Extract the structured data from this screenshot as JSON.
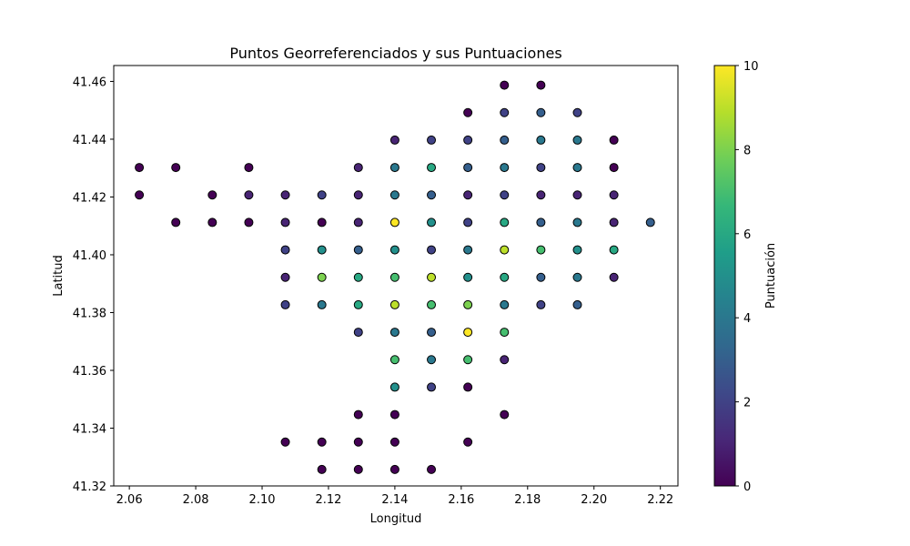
{
  "chart_data": {
    "type": "scatter",
    "title": "Puntos Georreferenciados y sus Puntuaciones",
    "xlabel": "Longitud",
    "ylabel": "Latitud",
    "xlim": [
      2.0553,
      2.2253
    ],
    "ylim": [
      41.32,
      41.4655
    ],
    "xticks": [
      2.06,
      2.08,
      2.1,
      2.12,
      2.14,
      2.16,
      2.18,
      2.2,
      2.22
    ],
    "xtick_labels": [
      "2.06",
      "2.08",
      "2.10",
      "2.12",
      "2.14",
      "2.16",
      "2.18",
      "2.20",
      "2.22"
    ],
    "yticks": [
      41.32,
      41.34,
      41.36,
      41.38,
      41.4,
      41.42,
      41.44,
      41.46
    ],
    "ytick_labels": [
      "41.32",
      "41.34",
      "41.36",
      "41.38",
      "41.40",
      "41.42",
      "41.44",
      "41.46"
    ],
    "colorbar": {
      "label": "Puntuación",
      "range": [
        0,
        10
      ],
      "ticks": [
        0,
        2,
        4,
        6,
        8,
        10
      ],
      "tick_labels": [
        "0",
        "2",
        "4",
        "6",
        "8",
        "10"
      ],
      "colormap": "viridis",
      "stops": [
        "#440154",
        "#482878",
        "#3e4989",
        "#31688e",
        "#26828e",
        "#1f9e89",
        "#35b779",
        "#6ece58",
        "#b5de2b",
        "#fde725"
      ]
    },
    "point_edge_color": "#000000",
    "points": [
      {
        "x": 2.173,
        "y": 41.4587,
        "v": 0
      },
      {
        "x": 2.184,
        "y": 41.4587,
        "v": 0
      },
      {
        "x": 2.162,
        "y": 41.4492,
        "v": 0
      },
      {
        "x": 2.173,
        "y": 41.4492,
        "v": 2
      },
      {
        "x": 2.184,
        "y": 41.4492,
        "v": 3
      },
      {
        "x": 2.195,
        "y": 41.4492,
        "v": 2
      },
      {
        "x": 2.14,
        "y": 41.4397,
        "v": 1
      },
      {
        "x": 2.151,
        "y": 41.4397,
        "v": 2
      },
      {
        "x": 2.162,
        "y": 41.4397,
        "v": 2
      },
      {
        "x": 2.173,
        "y": 41.4397,
        "v": 3
      },
      {
        "x": 2.184,
        "y": 41.4397,
        "v": 4
      },
      {
        "x": 2.195,
        "y": 41.4397,
        "v": 4
      },
      {
        "x": 2.206,
        "y": 41.4397,
        "v": 0
      },
      {
        "x": 2.063,
        "y": 41.4302,
        "v": 0
      },
      {
        "x": 2.074,
        "y": 41.4302,
        "v": 0
      },
      {
        "x": 2.096,
        "y": 41.4302,
        "v": 0
      },
      {
        "x": 2.129,
        "y": 41.4302,
        "v": 1
      },
      {
        "x": 2.14,
        "y": 41.4302,
        "v": 4
      },
      {
        "x": 2.151,
        "y": 41.4302,
        "v": 6
      },
      {
        "x": 2.162,
        "y": 41.4302,
        "v": 3
      },
      {
        "x": 2.173,
        "y": 41.4302,
        "v": 4
      },
      {
        "x": 2.184,
        "y": 41.4302,
        "v": 2
      },
      {
        "x": 2.195,
        "y": 41.4302,
        "v": 4
      },
      {
        "x": 2.206,
        "y": 41.4302,
        "v": 0
      },
      {
        "x": 2.063,
        "y": 41.4207,
        "v": 0
      },
      {
        "x": 2.085,
        "y": 41.4207,
        "v": 0
      },
      {
        "x": 2.096,
        "y": 41.4207,
        "v": 1
      },
      {
        "x": 2.107,
        "y": 41.4207,
        "v": 1
      },
      {
        "x": 2.118,
        "y": 41.4207,
        "v": 2
      },
      {
        "x": 2.129,
        "y": 41.4207,
        "v": 1
      },
      {
        "x": 2.14,
        "y": 41.4207,
        "v": 4
      },
      {
        "x": 2.151,
        "y": 41.4207,
        "v": 3
      },
      {
        "x": 2.162,
        "y": 41.4207,
        "v": 1
      },
      {
        "x": 2.173,
        "y": 41.4207,
        "v": 2
      },
      {
        "x": 2.184,
        "y": 41.4207,
        "v": 1
      },
      {
        "x": 2.195,
        "y": 41.4207,
        "v": 1
      },
      {
        "x": 2.206,
        "y": 41.4207,
        "v": 1
      },
      {
        "x": 2.074,
        "y": 41.4112,
        "v": 0
      },
      {
        "x": 2.085,
        "y": 41.4112,
        "v": 0
      },
      {
        "x": 2.096,
        "y": 41.4112,
        "v": 0
      },
      {
        "x": 2.107,
        "y": 41.4112,
        "v": 1
      },
      {
        "x": 2.118,
        "y": 41.4112,
        "v": 0
      },
      {
        "x": 2.129,
        "y": 41.4112,
        "v": 1
      },
      {
        "x": 2.14,
        "y": 41.4112,
        "v": 10
      },
      {
        "x": 2.151,
        "y": 41.4112,
        "v": 5
      },
      {
        "x": 2.162,
        "y": 41.4112,
        "v": 2
      },
      {
        "x": 2.173,
        "y": 41.4112,
        "v": 6
      },
      {
        "x": 2.184,
        "y": 41.4112,
        "v": 3
      },
      {
        "x": 2.195,
        "y": 41.4112,
        "v": 4
      },
      {
        "x": 2.206,
        "y": 41.4112,
        "v": 1
      },
      {
        "x": 2.217,
        "y": 41.4112,
        "v": 3
      },
      {
        "x": 2.107,
        "y": 41.4017,
        "v": 2
      },
      {
        "x": 2.118,
        "y": 41.4017,
        "v": 5
      },
      {
        "x": 2.129,
        "y": 41.4017,
        "v": 3
      },
      {
        "x": 2.14,
        "y": 41.4017,
        "v": 5
      },
      {
        "x": 2.151,
        "y": 41.4017,
        "v": 2
      },
      {
        "x": 2.162,
        "y": 41.4017,
        "v": 4
      },
      {
        "x": 2.173,
        "y": 41.4017,
        "v": 9
      },
      {
        "x": 2.184,
        "y": 41.4017,
        "v": 7
      },
      {
        "x": 2.195,
        "y": 41.4017,
        "v": 5
      },
      {
        "x": 2.206,
        "y": 41.4017,
        "v": 6
      },
      {
        "x": 2.107,
        "y": 41.3922,
        "v": 1
      },
      {
        "x": 2.118,
        "y": 41.3922,
        "v": 8
      },
      {
        "x": 2.129,
        "y": 41.3922,
        "v": 6
      },
      {
        "x": 2.14,
        "y": 41.3922,
        "v": 7
      },
      {
        "x": 2.151,
        "y": 41.3922,
        "v": 9
      },
      {
        "x": 2.162,
        "y": 41.3922,
        "v": 5
      },
      {
        "x": 2.173,
        "y": 41.3922,
        "v": 6
      },
      {
        "x": 2.184,
        "y": 41.3922,
        "v": 3
      },
      {
        "x": 2.195,
        "y": 41.3922,
        "v": 4
      },
      {
        "x": 2.206,
        "y": 41.3922,
        "v": 1
      },
      {
        "x": 2.107,
        "y": 41.3827,
        "v": 2
      },
      {
        "x": 2.118,
        "y": 41.3827,
        "v": 4
      },
      {
        "x": 2.129,
        "y": 41.3827,
        "v": 6
      },
      {
        "x": 2.14,
        "y": 41.3827,
        "v": 9
      },
      {
        "x": 2.151,
        "y": 41.3827,
        "v": 7
      },
      {
        "x": 2.162,
        "y": 41.3827,
        "v": 8
      },
      {
        "x": 2.173,
        "y": 41.3827,
        "v": 4
      },
      {
        "x": 2.184,
        "y": 41.3827,
        "v": 2
      },
      {
        "x": 2.195,
        "y": 41.3827,
        "v": 3
      },
      {
        "x": 2.129,
        "y": 41.3732,
        "v": 2
      },
      {
        "x": 2.14,
        "y": 41.3732,
        "v": 4
      },
      {
        "x": 2.151,
        "y": 41.3732,
        "v": 3
      },
      {
        "x": 2.162,
        "y": 41.3732,
        "v": 10
      },
      {
        "x": 2.173,
        "y": 41.3732,
        "v": 7
      },
      {
        "x": 2.14,
        "y": 41.3637,
        "v": 7
      },
      {
        "x": 2.151,
        "y": 41.3637,
        "v": 4
      },
      {
        "x": 2.162,
        "y": 41.3637,
        "v": 7
      },
      {
        "x": 2.173,
        "y": 41.3637,
        "v": 1
      },
      {
        "x": 2.14,
        "y": 41.3542,
        "v": 5
      },
      {
        "x": 2.151,
        "y": 41.3542,
        "v": 2
      },
      {
        "x": 2.162,
        "y": 41.3542,
        "v": 0
      },
      {
        "x": 2.129,
        "y": 41.3447,
        "v": 0
      },
      {
        "x": 2.14,
        "y": 41.3447,
        "v": 0
      },
      {
        "x": 2.173,
        "y": 41.3447,
        "v": 0
      },
      {
        "x": 2.107,
        "y": 41.3352,
        "v": 0
      },
      {
        "x": 2.118,
        "y": 41.3352,
        "v": 0
      },
      {
        "x": 2.129,
        "y": 41.3352,
        "v": 0
      },
      {
        "x": 2.14,
        "y": 41.3352,
        "v": 0
      },
      {
        "x": 2.162,
        "y": 41.3352,
        "v": 0
      },
      {
        "x": 2.118,
        "y": 41.3257,
        "v": 0
      },
      {
        "x": 2.129,
        "y": 41.3257,
        "v": 0
      },
      {
        "x": 2.14,
        "y": 41.3257,
        "v": 0
      },
      {
        "x": 2.151,
        "y": 41.3257,
        "v": 0
      }
    ]
  }
}
